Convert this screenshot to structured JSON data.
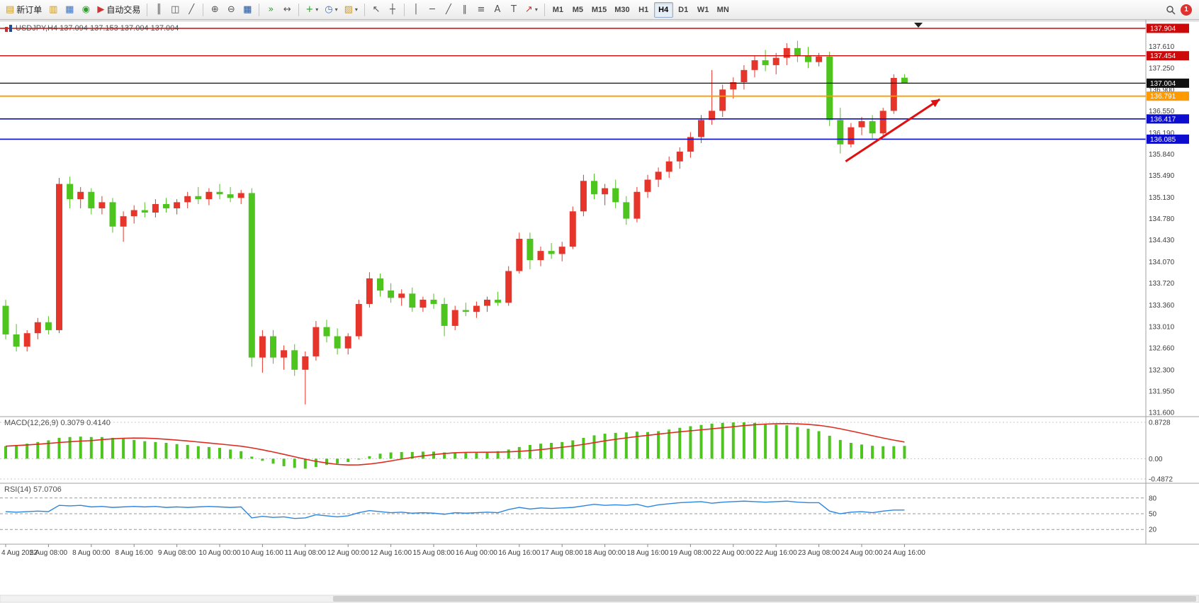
{
  "icons": {
    "new_order": "▤",
    "market_watch": "▥",
    "data_window": "▦",
    "navigator": "◉",
    "autotrade": "▶",
    "bar_chart": "║",
    "candle_chart": "◫",
    "line_chart": "╱",
    "zoom_in": "⊕",
    "zoom_out": "⊖",
    "tile_windows": "▦",
    "auto_scroll": "»",
    "chart_shift": "↔",
    "indicators": "+",
    "periods": "◷",
    "templates": "▨",
    "dropdown": "▾",
    "cursor": "↖",
    "crosshair": "┼",
    "vline": "│",
    "hline": "─",
    "trendline": "╱",
    "channel": "∥",
    "fibo": "≡",
    "text": "A",
    "label": "T",
    "shapes": "↗"
  },
  "toolbar": {
    "new_order_label": "新订单",
    "autotrade_label": "自动交易",
    "timeframes": [
      "M1",
      "M5",
      "M15",
      "M30",
      "H1",
      "H4",
      "D1",
      "W1",
      "MN"
    ],
    "active_timeframe": "H4",
    "notification_count": "1"
  },
  "chart": {
    "title": "USDJPY,H4 137.094 137.153 137.004 137.004"
  },
  "indicators": {
    "macd_label": "MACD(12,26,9) 0.3079 0.4140",
    "rsi_label": "RSI(14) 57.0706"
  },
  "chart_data": {
    "type": "candlestick",
    "symbol": "USDJPY",
    "timeframe": "H4",
    "colors": {
      "bull": "#e6352b",
      "bear": "#4ec41f",
      "macd_hist": "#4ec41f",
      "macd_signal": "#dd2c20",
      "rsi": "#2a86e0"
    },
    "candles": [
      [
        133.35,
        133.45,
        132.8,
        132.88
      ],
      [
        132.88,
        133.05,
        132.6,
        132.68
      ],
      [
        132.68,
        132.95,
        132.6,
        132.9
      ],
      [
        132.9,
        133.15,
        132.8,
        133.08
      ],
      [
        133.08,
        133.18,
        132.88,
        132.95
      ],
      [
        132.95,
        135.45,
        132.9,
        135.35
      ],
      [
        135.35,
        135.47,
        134.95,
        135.1
      ],
      [
        135.1,
        135.3,
        134.95,
        135.22
      ],
      [
        135.22,
        135.28,
        134.85,
        134.95
      ],
      [
        134.95,
        135.15,
        134.85,
        135.05
      ],
      [
        135.05,
        135.12,
        134.55,
        134.65
      ],
      [
        134.65,
        134.9,
        134.4,
        134.82
      ],
      [
        134.82,
        135.0,
        134.7,
        134.92
      ],
      [
        134.92,
        135.05,
        134.8,
        134.88
      ],
      [
        134.88,
        135.1,
        134.8,
        135.02
      ],
      [
        135.02,
        135.12,
        134.88,
        134.95
      ],
      [
        134.95,
        135.1,
        134.85,
        135.05
      ],
      [
        135.05,
        135.22,
        134.95,
        135.15
      ],
      [
        135.15,
        135.3,
        135.02,
        135.1
      ],
      [
        135.1,
        135.28,
        135.0,
        135.22
      ],
      [
        135.22,
        135.35,
        135.1,
        135.18
      ],
      [
        135.18,
        135.3,
        135.05,
        135.12
      ],
      [
        135.12,
        135.25,
        135.02,
        135.2
      ],
      [
        135.2,
        135.28,
        132.35,
        132.5
      ],
      [
        132.5,
        132.95,
        132.25,
        132.85
      ],
      [
        132.85,
        132.95,
        132.4,
        132.5
      ],
      [
        132.5,
        132.7,
        132.3,
        132.62
      ],
      [
        132.62,
        132.72,
        132.2,
        132.3
      ],
      [
        132.3,
        132.6,
        131.73,
        132.52
      ],
      [
        132.52,
        133.1,
        132.45,
        133.0
      ],
      [
        133.0,
        133.12,
        132.75,
        132.85
      ],
      [
        132.85,
        132.98,
        132.55,
        132.65
      ],
      [
        132.65,
        132.9,
        132.55,
        132.85
      ],
      [
        132.85,
        133.45,
        132.8,
        133.38
      ],
      [
        133.38,
        133.9,
        133.32,
        133.8
      ],
      [
        133.8,
        133.88,
        133.5,
        133.6
      ],
      [
        133.6,
        133.72,
        133.4,
        133.48
      ],
      [
        133.48,
        133.62,
        133.35,
        133.55
      ],
      [
        133.55,
        133.65,
        133.25,
        133.32
      ],
      [
        133.32,
        133.5,
        133.25,
        133.45
      ],
      [
        133.45,
        133.55,
        133.3,
        133.38
      ],
      [
        133.38,
        133.48,
        132.85,
        133.02
      ],
      [
        133.02,
        133.35,
        132.95,
        133.28
      ],
      [
        133.28,
        133.4,
        133.18,
        133.25
      ],
      [
        133.25,
        133.42,
        133.15,
        133.35
      ],
      [
        133.35,
        133.5,
        133.25,
        133.45
      ],
      [
        133.45,
        133.58,
        133.35,
        133.4
      ],
      [
        133.4,
        134.0,
        133.35,
        133.92
      ],
      [
        133.92,
        134.55,
        133.88,
        134.45
      ],
      [
        134.45,
        134.55,
        133.95,
        134.1
      ],
      [
        134.1,
        134.32,
        134.0,
        134.25
      ],
      [
        134.25,
        134.38,
        134.12,
        134.2
      ],
      [
        134.2,
        134.4,
        134.08,
        134.32
      ],
      [
        134.32,
        134.98,
        134.28,
        134.9
      ],
      [
        134.9,
        135.5,
        134.82,
        135.4
      ],
      [
        135.4,
        135.52,
        135.1,
        135.18
      ],
      [
        135.18,
        135.35,
        135.0,
        135.28
      ],
      [
        135.28,
        135.42,
        134.95,
        135.05
      ],
      [
        135.05,
        135.15,
        134.68,
        134.78
      ],
      [
        134.78,
        135.3,
        134.72,
        135.22
      ],
      [
        135.22,
        135.5,
        135.12,
        135.42
      ],
      [
        135.42,
        135.62,
        135.3,
        135.55
      ],
      [
        135.55,
        135.8,
        135.45,
        135.72
      ],
      [
        135.72,
        135.95,
        135.6,
        135.88
      ],
      [
        135.88,
        136.2,
        135.78,
        136.12
      ],
      [
        136.12,
        136.48,
        136.02,
        136.4
      ],
      [
        136.4,
        137.22,
        136.32,
        136.55
      ],
      [
        136.55,
        136.98,
        136.45,
        136.9
      ],
      [
        136.9,
        137.1,
        136.75,
        137.02
      ],
      [
        137.02,
        137.3,
        136.9,
        137.22
      ],
      [
        137.22,
        137.45,
        137.1,
        137.38
      ],
      [
        137.38,
        137.55,
        137.2,
        137.3
      ],
      [
        137.3,
        137.5,
        137.15,
        137.42
      ],
      [
        137.42,
        137.66,
        137.3,
        137.58
      ],
      [
        137.58,
        137.7,
        137.35,
        137.45
      ],
      [
        137.45,
        137.6,
        137.25,
        137.35
      ],
      [
        137.35,
        137.5,
        137.28,
        137.44
      ],
      [
        137.44,
        137.52,
        136.3,
        136.4
      ],
      [
        136.4,
        136.6,
        135.85,
        136.0
      ],
      [
        136.0,
        136.35,
        135.95,
        136.28
      ],
      [
        136.28,
        136.45,
        136.15,
        136.38
      ],
      [
        136.38,
        136.48,
        136.1,
        136.18
      ],
      [
        136.18,
        136.6,
        136.12,
        136.55
      ],
      [
        136.55,
        137.15,
        136.5,
        137.09
      ],
      [
        137.094,
        137.153,
        137.004,
        137.004
      ]
    ],
    "time_labels": [
      "4 Aug 2022",
      "5 Aug 08:00",
      "8 Aug 00:00",
      "8 Aug 16:00",
      "9 Aug 08:00",
      "10 Aug 00:00",
      "10 Aug 16:00",
      "11 Aug 08:00",
      "12 Aug 00:00",
      "12 Aug 16:00",
      "15 Aug 08:00",
      "16 Aug 00:00",
      "16 Aug 16:00",
      "17 Aug 08:00",
      "18 Aug 00:00",
      "18 Aug 16:00",
      "19 Aug 08:00",
      "22 Aug 00:00",
      "22 Aug 16:00",
      "23 Aug 08:00",
      "24 Aug 00:00",
      "24 Aug 16:00"
    ],
    "label_every": 4,
    "price_axis": [
      "137.610",
      "137.250",
      "136.900",
      "136.550",
      "136.190",
      "135.840",
      "135.490",
      "135.130",
      "134.780",
      "134.430",
      "134.070",
      "133.720",
      "133.360",
      "133.010",
      "132.660",
      "132.300",
      "131.950",
      "131.600"
    ],
    "hlines": [
      {
        "price": 137.904,
        "label": "137.904",
        "color": "#cc0a0a",
        "width": 1.4
      },
      {
        "price": 137.454,
        "label": "137.454",
        "color": "#cc0a0a",
        "width": 1.4
      },
      {
        "price": 137.004,
        "label": "137.004",
        "color": "#111111",
        "width": 1.2
      },
      {
        "price": 136.791,
        "label": "136.791",
        "color": "#ff9b00",
        "width": 1.8
      },
      {
        "price": 136.417,
        "label": "136.417",
        "color": "#0d0dd0",
        "width": 1.6
      },
      {
        "price": 136.085,
        "label": "136.085",
        "color": "#0d0dd0",
        "width": 1.6
      }
    ],
    "macd": {
      "params": "12,26,9",
      "value": "0.3079",
      "signal": "0.4140",
      "max": 0.8728,
      "min": -0.4872,
      "axis": [
        "0.8728",
        "0.00",
        "-0.4872"
      ]
    },
    "macd_hist": [
      0.3,
      0.33,
      0.36,
      0.4,
      0.44,
      0.5,
      0.52,
      0.53,
      0.52,
      0.52,
      0.5,
      0.48,
      0.45,
      0.42,
      0.4,
      0.38,
      0.35,
      0.33,
      0.3,
      0.28,
      0.26,
      0.22,
      0.18,
      0.05,
      -0.05,
      -0.12,
      -0.18,
      -0.22,
      -0.24,
      -0.2,
      -0.15,
      -0.12,
      -0.08,
      -0.02,
      0.06,
      0.12,
      0.15,
      0.16,
      0.16,
      0.17,
      0.17,
      0.15,
      0.14,
      0.14,
      0.15,
      0.16,
      0.18,
      0.22,
      0.28,
      0.33,
      0.36,
      0.38,
      0.4,
      0.44,
      0.5,
      0.56,
      0.6,
      0.62,
      0.63,
      0.65,
      0.64,
      0.66,
      0.7,
      0.74,
      0.78,
      0.81,
      0.84,
      0.86,
      0.87,
      0.872,
      0.86,
      0.84,
      0.82,
      0.8,
      0.76,
      0.72,
      0.66,
      0.55,
      0.45,
      0.38,
      0.34,
      0.31,
      0.3,
      0.3,
      0.308
    ],
    "rsi": {
      "period": 14,
      "value": "57.0706",
      "levels": [
        80,
        50,
        20
      ],
      "axis": [
        "80",
        "50",
        "20"
      ]
    },
    "rsi_values": [
      54,
      53,
      54,
      55,
      54,
      66,
      65,
      66,
      63,
      64,
      62,
      63,
      64,
      63,
      64,
      62,
      63,
      62,
      63,
      64,
      63,
      62,
      63,
      42,
      45,
      43,
      44,
      41,
      42,
      48,
      46,
      44,
      46,
      52,
      56,
      54,
      52,
      53,
      51,
      52,
      51,
      49,
      52,
      51,
      52,
      53,
      52,
      58,
      62,
      59,
      61,
      60,
      61,
      62,
      65,
      68,
      66,
      67,
      66,
      68,
      63,
      67,
      69,
      71,
      72,
      73,
      70,
      72,
      73,
      74,
      73,
      72,
      73,
      74,
      72,
      71,
      71,
      55,
      50,
      53,
      54,
      52,
      55,
      57,
      57.07
    ],
    "arrow": {
      "from_bar": 78.5,
      "from_price": 135.72,
      "to_bar": 87.3,
      "to_price": 136.74,
      "color": "#e01010"
    }
  }
}
